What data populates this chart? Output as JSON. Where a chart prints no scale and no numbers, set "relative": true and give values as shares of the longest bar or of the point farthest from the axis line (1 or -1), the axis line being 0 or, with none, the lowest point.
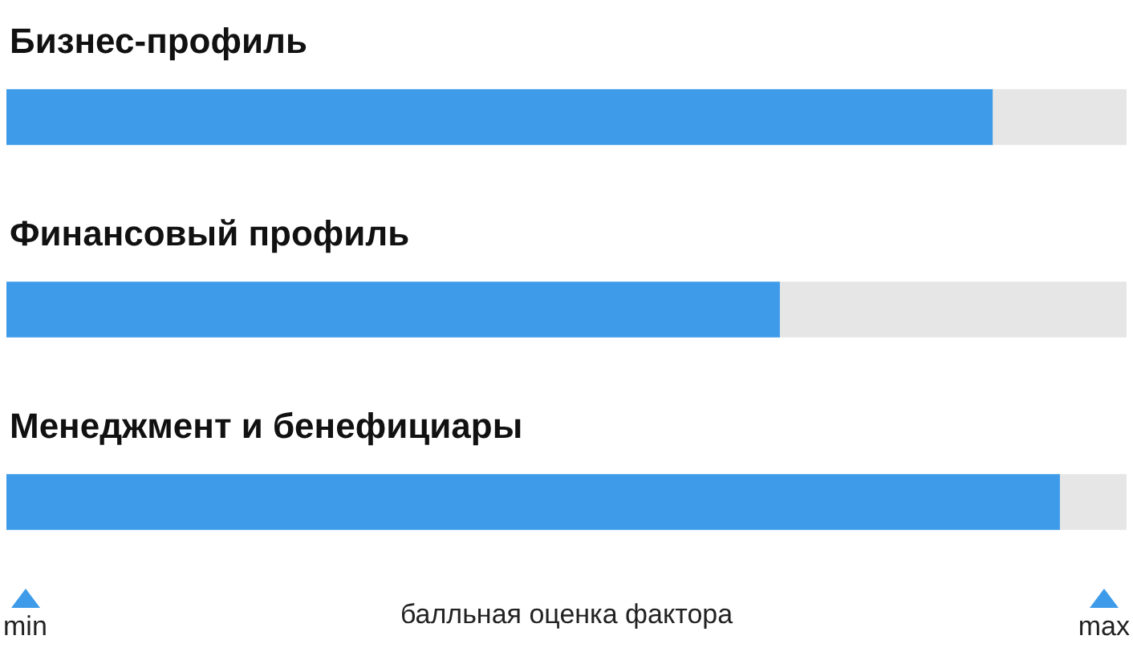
{
  "chart_data": {
    "type": "bar",
    "orientation": "horizontal",
    "stacked": true,
    "relative": true,
    "categories": [
      "Бизнес-профиль",
      "Финансовый профиль",
      "Менеджмент и бенефициары"
    ],
    "series": [
      {
        "color": "#3d9be9",
        "values": [
          0.88,
          0.69,
          0.94
        ]
      },
      {
        "color": "#e6e6e6",
        "values": [
          0.12,
          0.31,
          0.06
        ]
      }
    ],
    "xlabel": "балльная оценка фактора",
    "annotations": [
      "min",
      "max"
    ]
  }
}
